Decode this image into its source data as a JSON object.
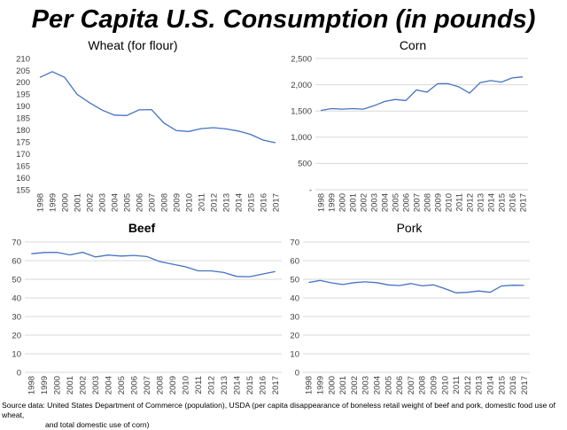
{
  "title": "Per Capita U.S. Consumption (in pounds)",
  "source_note": {
    "line1": "Source data: United States Department of Commerce (population), USDA (per capita disappearance of boneless retail weight of beef and pork, domestic food use of wheat,",
    "line2": "and total domestic use of corn)"
  },
  "colors": {
    "series": "#4472c4",
    "grid": "#d9d9d9",
    "axis_text": "#404040"
  },
  "chart_data": [
    {
      "type": "line",
      "title": "Wheat (for flour)",
      "x": [
        "1998",
        "1999",
        "2000",
        "2001",
        "2002",
        "2003",
        "2004",
        "2005",
        "2006",
        "2007",
        "2008",
        "2009",
        "2010",
        "2011",
        "2012",
        "2013",
        "2014",
        "2015",
        "2016",
        "2017"
      ],
      "series": [
        {
          "values": [
            202.1,
            204.5,
            202.1,
            195.0,
            191.5,
            188.4,
            186.3,
            186.1,
            188.5,
            188.6,
            183.0,
            179.8,
            179.4,
            180.6,
            181.0,
            180.5,
            179.6,
            178.2,
            175.8,
            174.7
          ]
        }
      ],
      "ylim": [
        155,
        210
      ],
      "yticks": [
        155,
        160,
        165,
        170,
        175,
        180,
        185,
        190,
        195,
        200,
        205,
        210
      ],
      "ytick_labels": [
        "155",
        "160",
        "165",
        "170",
        "175",
        "180",
        "185",
        "190",
        "195",
        "200",
        "205",
        "210"
      ],
      "grid": true
    },
    {
      "type": "line",
      "title": "Corn",
      "x": [
        "1998",
        "1999",
        "2000",
        "2001",
        "2002",
        "2003",
        "2004",
        "2005",
        "2006",
        "2007",
        "2008",
        "2009",
        "2010",
        "2011",
        "2012",
        "2013",
        "2014",
        "2015",
        "2016",
        "2017"
      ],
      "series": [
        {
          "values": [
            1510,
            1545,
            1535,
            1545,
            1535,
            1600,
            1680,
            1720,
            1700,
            1900,
            1860,
            2020,
            2020,
            1960,
            1840,
            2040,
            2080,
            2050,
            2130,
            2150
          ]
        }
      ],
      "ylim": [
        0,
        2500
      ],
      "yticks": [
        0,
        500,
        1000,
        1500,
        2000,
        2500
      ],
      "ytick_labels": [
        "-",
        "500",
        "1,000",
        "1,500",
        "2,000",
        "2,500"
      ],
      "grid": true
    },
    {
      "type": "line",
      "title": "Beef",
      "x": [
        "1998",
        "1999",
        "2000",
        "2001",
        "2002",
        "2003",
        "2004",
        "2005",
        "2006",
        "2007",
        "2008",
        "2009",
        "2010",
        "2011",
        "2012",
        "2013",
        "2014",
        "2015",
        "2016",
        "2017"
      ],
      "series": [
        {
          "values": [
            63.7,
            64.4,
            64.5,
            63.1,
            64.5,
            62.0,
            63.0,
            62.5,
            62.8,
            62.2,
            59.5,
            58.1,
            56.7,
            54.5,
            54.5,
            53.6,
            51.5,
            51.4,
            52.8,
            54.2
          ]
        }
      ],
      "ylim": [
        0,
        70
      ],
      "yticks": [
        0,
        10,
        20,
        30,
        40,
        50,
        60,
        70
      ],
      "ytick_labels": [
        "0",
        "10",
        "20",
        "30",
        "40",
        "50",
        "60",
        "70"
      ],
      "grid": true
    },
    {
      "type": "line",
      "title": "Pork",
      "x": [
        "1998",
        "1999",
        "2000",
        "2001",
        "2002",
        "2003",
        "2004",
        "2005",
        "2006",
        "2007",
        "2008",
        "2009",
        "2010",
        "2011",
        "2012",
        "2013",
        "2014",
        "2015",
        "2016",
        "2017"
      ],
      "series": [
        {
          "values": [
            48.3,
            49.4,
            48.1,
            47.2,
            48.2,
            48.6,
            48.2,
            47.0,
            46.6,
            47.7,
            46.5,
            47.0,
            45.0,
            42.7,
            43.0,
            43.7,
            43.0,
            46.4,
            46.8,
            46.7
          ]
        }
      ],
      "ylim": [
        0,
        70
      ],
      "yticks": [
        0,
        10,
        20,
        30,
        40,
        50,
        60,
        70
      ],
      "ytick_labels": [
        "0",
        "10",
        "20",
        "30",
        "40",
        "50",
        "60",
        "70"
      ],
      "grid": true
    }
  ]
}
